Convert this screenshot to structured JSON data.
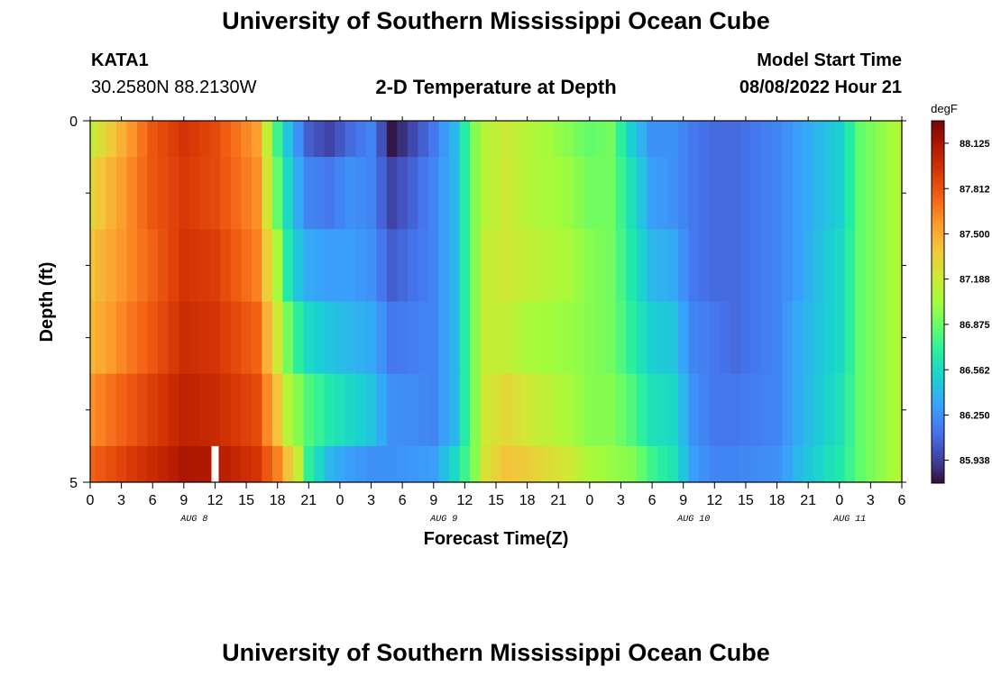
{
  "header": {
    "title": "University of Southern Mississippi Ocean Cube",
    "station": "KATA1",
    "coords": "30.2580N  88.2130W",
    "subtitle": "2-D Temperature at Depth",
    "model_start_label": "Model Start Time",
    "model_start_value": "08/08/2022 Hour 21"
  },
  "footer": {
    "title": "University of Southern Mississippi Ocean Cube"
  },
  "chart_data": {
    "type": "heatmap",
    "xlabel": "Forecast Time(Z)",
    "ylabel": "Depth (ft)",
    "ylim": [
      0,
      5
    ],
    "y_ticks": [
      "0",
      "5"
    ],
    "x_hours_range": [
      0,
      78
    ],
    "x_ticks": [
      "0",
      "3",
      "6",
      "9",
      "12",
      "15",
      "18",
      "21",
      "0",
      "3",
      "6",
      "9",
      "12",
      "15",
      "18",
      "21",
      "0",
      "3",
      "6",
      "9",
      "12",
      "15",
      "18",
      "21",
      "0",
      "3",
      "6"
    ],
    "date_labels": [
      {
        "label": "AUG 8",
        "hour": 10
      },
      {
        "label": "AUG 9",
        "hour": 34
      },
      {
        "label": "AUG 10",
        "hour": 58
      },
      {
        "label": "AUG 11",
        "hour": 73
      }
    ],
    "colorbar": {
      "unit": "degF",
      "min": 85.78,
      "max": 88.28,
      "ticks": [
        "88.125",
        "87.812",
        "87.500",
        "87.188",
        "86.875",
        "86.562",
        "86.250",
        "85.938"
      ],
      "colors": [
        "#30123b",
        "#4145ab",
        "#4675ed",
        "#39a2fc",
        "#1bcfd4",
        "#24eca6",
        "#61fc6c",
        "#a4fc3b",
        "#d1e834",
        "#f3c63a",
        "#fe9b2d",
        "#f36315",
        "#d93806",
        "#b11901",
        "#7a0402"
      ]
    },
    "depth_bands_ft": [
      0,
      0.5,
      1.5,
      2.5,
      3.5,
      4.5,
      5
    ],
    "hours": [
      0,
      6,
      9,
      12,
      16,
      18,
      19,
      20,
      21,
      23,
      25,
      27,
      29,
      33,
      35,
      37,
      38,
      40,
      42,
      46,
      48,
      50,
      52,
      54,
      56,
      58,
      60,
      62,
      66,
      68,
      72,
      74,
      78
    ],
    "rows": [
      {
        "depth": "0-0.5",
        "values": [
          87.15,
          87.8,
          87.95,
          87.85,
          87.55,
          86.75,
          86.45,
          86.25,
          86.05,
          85.95,
          86.1,
          86.2,
          85.8,
          86.15,
          86.4,
          86.95,
          87.1,
          87.18,
          87.1,
          86.95,
          86.85,
          86.9,
          86.5,
          86.25,
          86.25,
          86.15,
          86.1,
          86.1,
          86.2,
          86.3,
          86.5,
          86.85,
          87.1
        ]
      },
      {
        "depth": "0.5-1.5",
        "values": [
          87.3,
          87.8,
          87.92,
          87.85,
          87.6,
          86.85,
          86.55,
          86.35,
          86.2,
          86.15,
          86.25,
          86.2,
          85.95,
          86.2,
          86.4,
          86.95,
          87.1,
          87.2,
          87.1,
          87.0,
          86.9,
          86.9,
          86.6,
          86.3,
          86.25,
          86.15,
          86.1,
          86.1,
          86.2,
          86.3,
          86.5,
          86.85,
          87.1
        ]
      },
      {
        "depth": "1.5-2.5",
        "values": [
          87.4,
          87.75,
          87.95,
          87.9,
          87.65,
          87.05,
          86.65,
          86.45,
          86.35,
          86.3,
          86.3,
          86.25,
          86.05,
          86.2,
          86.4,
          86.95,
          87.15,
          87.2,
          87.15,
          87.05,
          86.95,
          86.9,
          86.65,
          86.4,
          86.35,
          86.15,
          86.1,
          86.1,
          86.2,
          86.3,
          86.55,
          86.85,
          87.1
        ]
      },
      {
        "depth": "2.5-3.5",
        "values": [
          87.45,
          87.8,
          87.98,
          87.95,
          87.75,
          87.2,
          86.9,
          86.7,
          86.55,
          86.45,
          86.4,
          86.35,
          86.15,
          86.2,
          86.4,
          86.95,
          87.15,
          87.15,
          87.05,
          87.0,
          86.95,
          86.9,
          86.7,
          86.5,
          86.45,
          86.2,
          86.15,
          86.1,
          86.2,
          86.35,
          86.55,
          86.85,
          87.1
        ]
      },
      {
        "depth": "3.5-4.5",
        "values": [
          87.6,
          87.9,
          88.05,
          88.0,
          87.85,
          87.4,
          87.1,
          86.95,
          86.8,
          86.65,
          86.55,
          86.45,
          86.25,
          86.2,
          86.4,
          86.95,
          87.2,
          87.3,
          87.2,
          87.05,
          86.95,
          86.95,
          86.8,
          86.6,
          86.55,
          86.25,
          86.15,
          86.15,
          86.2,
          86.35,
          86.6,
          86.85,
          87.1
        ]
      },
      {
        "depth": "4.5-5",
        "values": [
          87.75,
          88.0,
          88.12,
          88.1,
          87.95,
          87.65,
          87.4,
          87.15,
          86.7,
          86.4,
          86.3,
          86.25,
          86.25,
          86.3,
          86.55,
          86.95,
          87.25,
          87.4,
          87.35,
          87.2,
          87.05,
          87.0,
          86.95,
          86.75,
          86.62,
          86.3,
          86.2,
          86.2,
          86.25,
          86.4,
          86.65,
          86.85,
          87.1
        ]
      }
    ],
    "marker_hour": 12
  }
}
